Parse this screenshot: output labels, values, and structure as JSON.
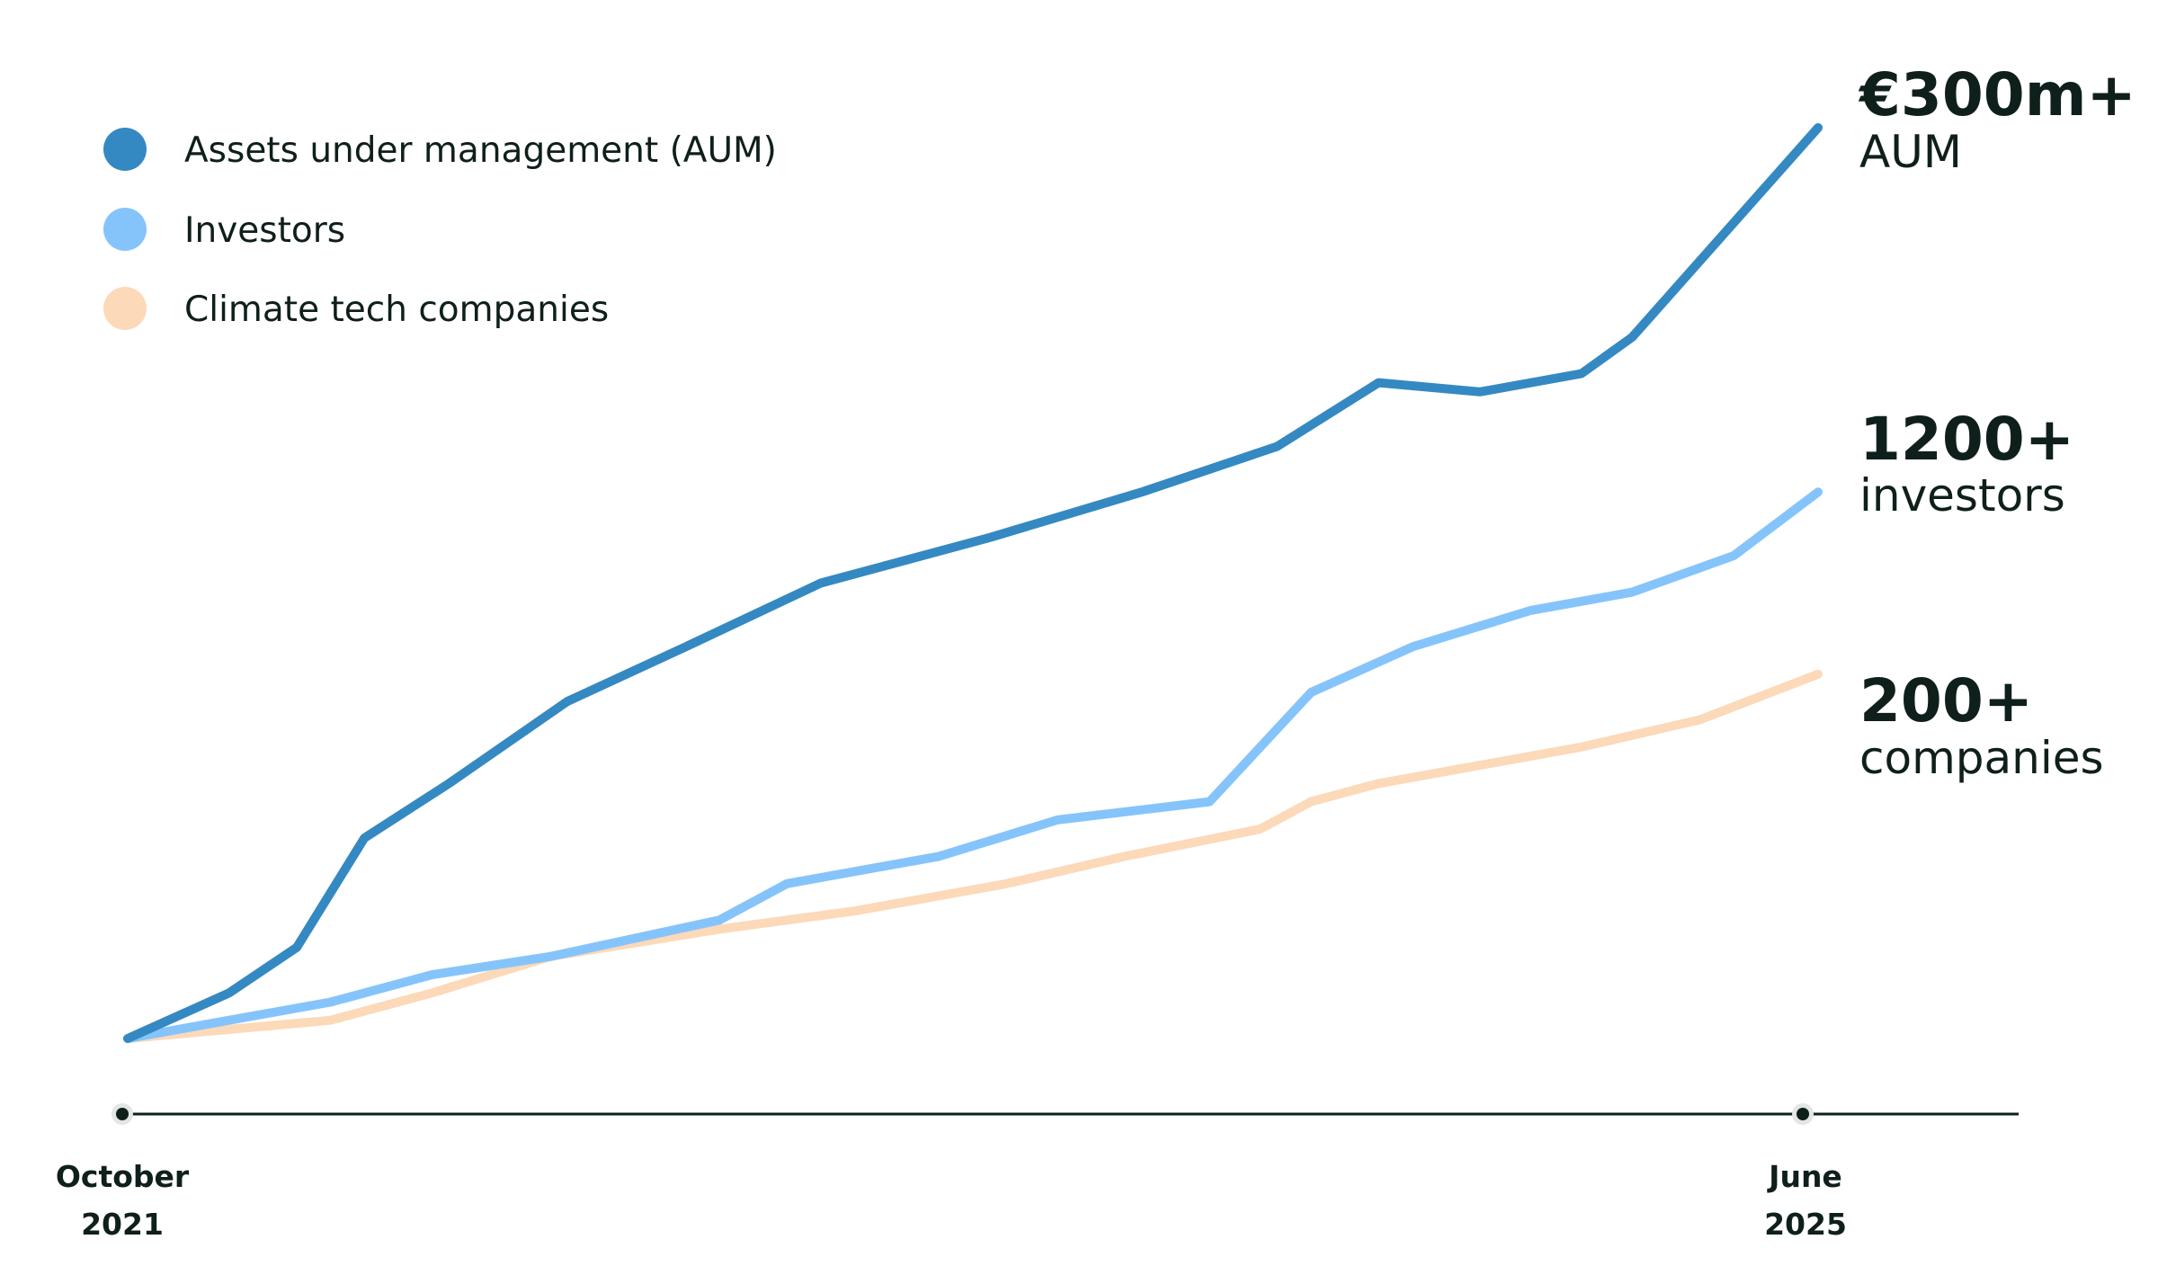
{
  "chart_data": {
    "type": "line",
    "title": "",
    "x_start_label": [
      "October",
      "2021"
    ],
    "x_end_label": [
      "June",
      "2025"
    ],
    "x": [
      0,
      6,
      10,
      13,
      19,
      26,
      33,
      41,
      50,
      60,
      70,
      80,
      86,
      93,
      97,
      100
    ],
    "ylim": [
      0,
      100
    ],
    "grid": false,
    "legend_position": "top-left",
    "series": [
      {
        "name": "Assets under management (AUM)",
        "color": "#3489c2",
        "values": [
          0,
          5,
          10,
          22,
          28,
          37,
          43,
          50,
          55,
          60,
          65,
          72,
          71,
          73,
          77,
          100
        ],
        "x": [
          0,
          6,
          10,
          14,
          19,
          26,
          33,
          41,
          51,
          60,
          68,
          74,
          80,
          86,
          89,
          100
        ],
        "end_value": "€300m+",
        "end_unit": "AUM"
      },
      {
        "name": "Investors",
        "color": "#85c4fb",
        "values": [
          0,
          2,
          4,
          7,
          9,
          13,
          17,
          20,
          24,
          26,
          38,
          43,
          47,
          49,
          53,
          60
        ],
        "x": [
          0,
          6,
          12,
          18,
          25,
          35,
          39,
          48,
          55,
          64,
          70,
          76,
          83,
          89,
          95,
          100
        ],
        "end_value": "1200+",
        "end_unit": "investors"
      },
      {
        "name": "Climate tech companies",
        "color": "#fcd9b8",
        "values": [
          0,
          1,
          2,
          5,
          9,
          12,
          14,
          17,
          20,
          23,
          26,
          28,
          30,
          32,
          35,
          40
        ],
        "x": [
          0,
          6,
          12,
          18,
          25,
          35,
          43,
          52,
          59,
          67,
          70,
          74,
          80,
          86,
          93,
          100
        ],
        "end_value": "200+",
        "end_unit": "companies"
      }
    ]
  }
}
